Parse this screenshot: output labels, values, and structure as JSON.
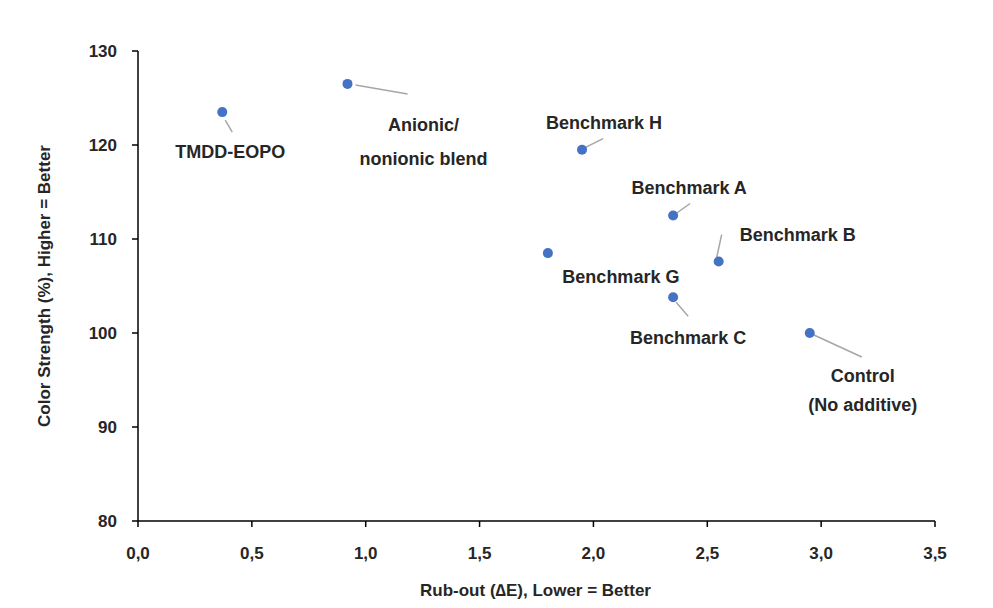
{
  "chart_data": {
    "type": "scatter",
    "x_label": "Rub-out (∆E), Lower = Better",
    "y_label": "Color Strength (%), Higher = Better",
    "x": [
      0.37,
      0.92,
      1.95,
      2.35,
      2.55,
      1.8,
      2.35,
      2.95
    ],
    "values": [
      123.5,
      126.5,
      119.5,
      112.5,
      107.6,
      108.5,
      103.8,
      100
    ],
    "point_labels": [
      [
        "TMDD-EOPO"
      ],
      [
        "Anionic/",
        "nonionic blend"
      ],
      [
        "Benchmark H"
      ],
      [
        "Benchmark A"
      ],
      [
        "Benchmark B"
      ],
      [
        "Benchmark G"
      ],
      [
        "Benchmark C"
      ],
      [
        "Control",
        "(No additive)"
      ]
    ],
    "color": "#4472c4",
    "marker": "circle",
    "grid": false,
    "xlim": [
      0,
      3.5
    ],
    "xticks": [
      {
        "value": 0,
        "label": "0,0"
      },
      {
        "value": 0.5,
        "label": "0,5"
      },
      {
        "value": 1,
        "label": "1,0"
      },
      {
        "value": 1.5,
        "label": "1,5"
      },
      {
        "value": 2,
        "label": "2,0"
      },
      {
        "value": 2.5,
        "label": "2,5"
      },
      {
        "value": 3,
        "label": "3,0"
      },
      {
        "value": 3.5,
        "label": "3,5"
      }
    ],
    "ylim": [
      80,
      130
    ],
    "yticks": [
      80,
      90,
      100,
      110,
      120,
      130
    ]
  }
}
